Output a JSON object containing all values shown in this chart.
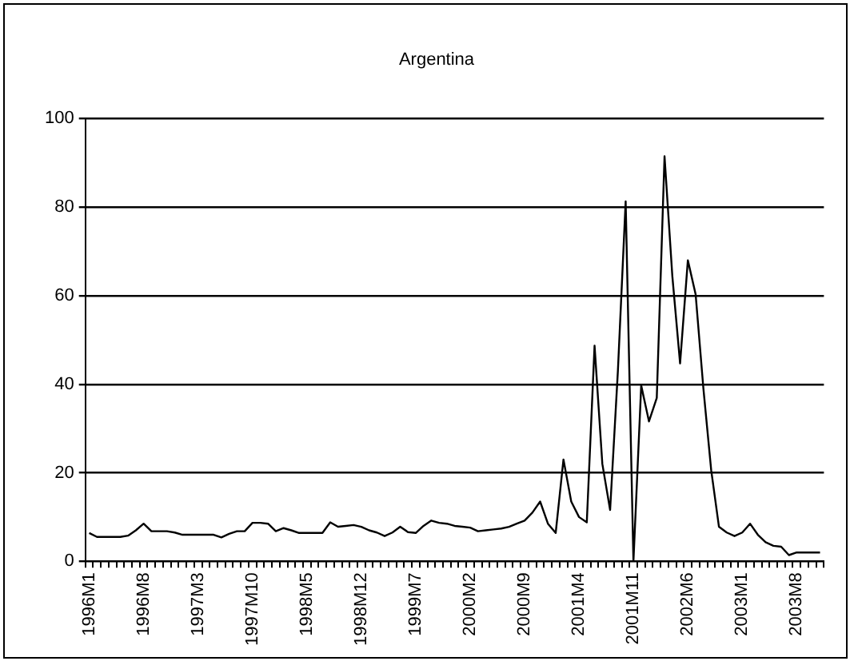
{
  "chart_data": {
    "type": "line",
    "title": "Argentina",
    "categories": [
      "1996M1",
      null,
      null,
      null,
      null,
      null,
      null,
      "1996M8",
      null,
      null,
      null,
      null,
      null,
      null,
      "1997M3",
      null,
      null,
      null,
      null,
      null,
      null,
      "1997M10",
      null,
      null,
      null,
      null,
      null,
      null,
      "1998M5",
      null,
      null,
      null,
      null,
      null,
      null,
      "1998M12",
      null,
      null,
      null,
      null,
      null,
      null,
      "1999M7",
      null,
      null,
      null,
      null,
      null,
      null,
      "2000M2",
      null,
      null,
      null,
      null,
      null,
      null,
      "2000M9",
      null,
      null,
      null,
      null,
      null,
      null,
      "2001M4",
      null,
      null,
      null,
      null,
      null,
      null,
      "2001M11",
      null,
      null,
      null,
      null,
      null,
      null,
      "2002M6",
      null,
      null,
      null,
      null,
      null,
      null,
      "2003M1",
      null,
      null,
      null,
      null,
      null,
      null,
      "2003M8",
      null,
      null,
      null
    ],
    "series": [
      {
        "color": "#000000",
        "values": [
          6.4,
          5.5,
          5.5,
          5.5,
          5.5,
          5.8,
          7,
          8.5,
          6.8,
          6.8,
          6.8,
          6.5,
          6,
          6,
          6,
          6,
          6,
          5.4,
          6.2,
          6.8,
          6.8,
          8.7,
          8.7,
          8.5,
          6.8,
          7.5,
          7,
          6.4,
          6.4,
          6.4,
          6.4,
          8.8,
          7.8,
          8,
          8.2,
          7.8,
          7,
          6.5,
          5.7,
          6.5,
          7.8,
          6.6,
          6.4,
          8,
          9.2,
          8.7,
          8.5,
          8,
          7.8,
          7.6,
          6.8,
          7,
          7.2,
          7.4,
          7.8,
          8.5,
          9.2,
          11,
          13.5,
          8.5,
          6.4,
          23,
          13.5,
          10,
          8.8,
          48.7,
          22,
          11.6,
          43,
          81.3,
          0,
          39.7,
          31.6,
          36.9,
          91.5,
          64.5,
          44.7,
          68,
          60.3,
          39,
          20.6,
          7.8,
          6.5,
          5.7,
          6.5,
          8.5,
          6,
          4.3,
          3.5,
          3.3,
          1.4,
          2,
          2,
          2,
          2
        ]
      }
    ],
    "ylim": [
      0,
      100
    ],
    "yticks": [
      0,
      20,
      40,
      60,
      80,
      100
    ],
    "grid": "y",
    "legend": false,
    "marker": "none",
    "line_style": "solid"
  }
}
